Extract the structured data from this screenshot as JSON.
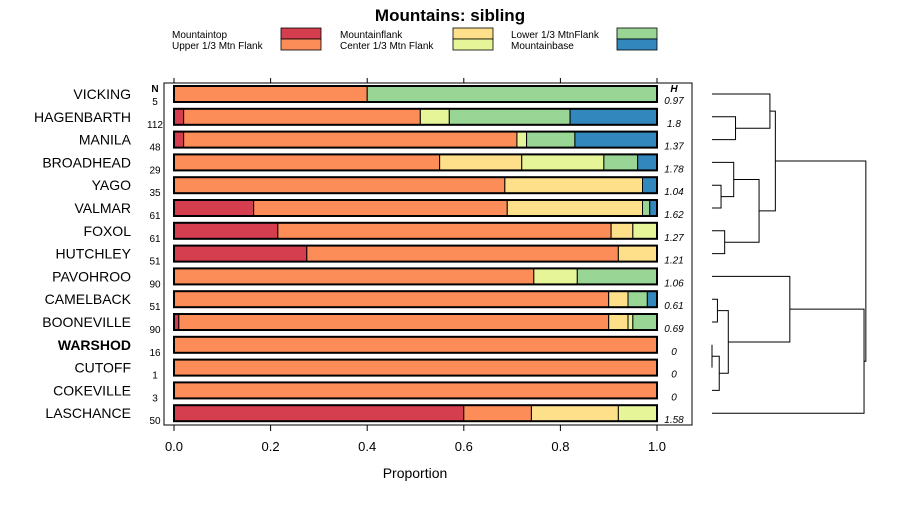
{
  "chart_data": {
    "type": "bar",
    "orientation": "horizontal",
    "stacked": true,
    "title": "Mountains: sibling",
    "xlabel": "Proportion",
    "xlim": [
      0,
      1
    ],
    "xticks": [
      "0.0",
      "0.2",
      "0.4",
      "0.6",
      "0.8",
      "1.0"
    ],
    "n_header": "N",
    "h_header": "H",
    "series": [
      {
        "name": "Mountaintop",
        "color": "#d53e4f"
      },
      {
        "name": "Upper 1/3 Mtn Flank",
        "color": "#fc8d59"
      },
      {
        "name": "Mountainflank",
        "color": "#fee08b"
      },
      {
        "name": "Center 1/3 Mtn Flank",
        "color": "#e6f598"
      },
      {
        "name": "Lower 1/3 MtnFlank",
        "color": "#99d594"
      },
      {
        "name": "Mountainbase",
        "color": "#3288bd"
      }
    ],
    "rows": [
      {
        "label": "VICKING",
        "bold": false,
        "n": "5",
        "h": "0.97",
        "values": [
          0,
          0.4,
          0,
          0,
          0.6,
          0
        ]
      },
      {
        "label": "HAGENBARTH",
        "bold": false,
        "n": "112",
        "h": "1.8",
        "values": [
          0.02,
          0.49,
          0,
          0.06,
          0.25,
          0.18
        ]
      },
      {
        "label": "MANILA",
        "bold": false,
        "n": "48",
        "h": "1.37",
        "values": [
          0.02,
          0.69,
          0,
          0.02,
          0.1,
          0.17
        ]
      },
      {
        "label": "BROADHEAD",
        "bold": false,
        "n": "29",
        "h": "1.78",
        "values": [
          0,
          0.55,
          0.17,
          0.17,
          0.07,
          0.04
        ]
      },
      {
        "label": "YAGO",
        "bold": false,
        "n": "35",
        "h": "1.04",
        "values": [
          0,
          0.685,
          0.285,
          0,
          0,
          0.03
        ]
      },
      {
        "label": "VALMAR",
        "bold": false,
        "n": "61",
        "h": "1.62",
        "values": [
          0.165,
          0.525,
          0.28,
          0,
          0.015,
          0.015
        ]
      },
      {
        "label": "FOXOL",
        "bold": false,
        "n": "61",
        "h": "1.27",
        "values": [
          0.215,
          0.69,
          0.045,
          0.05,
          0,
          0
        ]
      },
      {
        "label": "HUTCHLEY",
        "bold": false,
        "n": "51",
        "h": "1.21",
        "values": [
          0.275,
          0.645,
          0.08,
          0,
          0,
          0
        ]
      },
      {
        "label": "PAVOHROO",
        "bold": false,
        "n": "90",
        "h": "1.06",
        "values": [
          0,
          0.745,
          0,
          0.09,
          0.165,
          0
        ]
      },
      {
        "label": "CAMELBACK",
        "bold": false,
        "n": "51",
        "h": "0.61",
        "values": [
          0,
          0.9,
          0.04,
          0,
          0.04,
          0.02
        ]
      },
      {
        "label": "BOONEVILLE",
        "bold": false,
        "n": "90",
        "h": "0.69",
        "values": [
          0.01,
          0.89,
          0.04,
          0.01,
          0.05,
          0
        ]
      },
      {
        "label": "WARSHOD",
        "bold": true,
        "n": "16",
        "h": "0",
        "values": [
          0,
          1,
          0,
          0,
          0,
          0
        ]
      },
      {
        "label": "CUTOFF",
        "bold": false,
        "n": "1",
        "h": "0",
        "values": [
          0,
          1,
          0,
          0,
          0,
          0
        ]
      },
      {
        "label": "COKEVILLE",
        "bold": false,
        "n": "3",
        "h": "0",
        "values": [
          0,
          1,
          0,
          0,
          0,
          0
        ]
      },
      {
        "label": "LASCHANCE",
        "bold": false,
        "n": "50",
        "h": "1.58",
        "values": [
          0.6,
          0.14,
          0.18,
          0.08,
          0,
          0
        ]
      }
    ],
    "dendrogram": {
      "leaf_order": [
        "VICKING",
        "HAGENBARTH",
        "MANILA",
        "BROADHEAD",
        "YAGO",
        "VALMAR",
        "FOXOL",
        "HUTCHLEY",
        "PAVOHROO",
        "CAMELBACK",
        "BOONEVILLE",
        "WARSHOD",
        "CUTOFF",
        "COKEVILLE",
        "LASCHANCE"
      ],
      "merges": [
        {
          "a": 11,
          "b": 12,
          "height": 0.0
        },
        {
          "a": 9,
          "b": 10,
          "height": 0.03
        },
        {
          "a": "m0",
          "b": 13,
          "height": 0.04
        },
        {
          "a": 4,
          "b": 5,
          "height": 0.05
        },
        {
          "a": 6,
          "b": 7,
          "height": 0.07
        },
        {
          "a": "m1",
          "b": "m2",
          "height": 0.09
        },
        {
          "a": "m3",
          "b": 3,
          "height": 0.12
        },
        {
          "a": 1,
          "b": 2,
          "height": 0.13
        },
        {
          "a": 0,
          "b": "m7",
          "height": 0.32
        },
        {
          "a": "m6",
          "b": "m4",
          "height": 0.26
        },
        {
          "a": "m8",
          "b": "m9",
          "height": 0.35
        },
        {
          "a": 8,
          "b": "m5",
          "height": 0.43
        },
        {
          "a": "m11",
          "b": 14,
          "height": 0.84
        },
        {
          "a": "m10",
          "b": "m12",
          "height": 0.85
        }
      ]
    }
  }
}
